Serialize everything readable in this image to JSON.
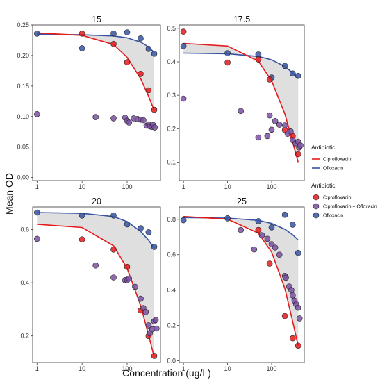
{
  "chart_data": {
    "type": "scatter",
    "xlabel": "Concentration (ug/L)",
    "ylabel": "Mean OD",
    "x_scale": "log",
    "x_ticks": [
      1,
      10,
      100
    ],
    "x_tick_labels": [
      "1",
      "10",
      "100"
    ],
    "xlim": [
      0.8,
      550
    ],
    "colors": {
      "Ciprofloxacin": "#e41a1c",
      "Ofloxacin": "#3853a4",
      "Ciprofloxacin + Ofloxacin": "#7b50a3",
      "band": "#d9d9d9"
    },
    "legends": [
      {
        "title": "Antibiotic",
        "kind": "line",
        "items": [
          {
            "label": "Ciprofloxacin",
            "color": "#e41a1c"
          },
          {
            "label": "Ofloxacin",
            "color": "#3853a4"
          }
        ]
      },
      {
        "title": "Antibiotic",
        "kind": "point",
        "items": [
          {
            "label": "Ciprofloxacin",
            "color": "#e41a1c"
          },
          {
            "label": "Ciprofloxacin + Ofloxacin",
            "color": "#7b50a3"
          },
          {
            "label": "Ofloxacin",
            "color": "#3853a4"
          }
        ]
      }
    ],
    "panels": [
      {
        "title": "15",
        "ylim": [
          -0.005,
          0.25
        ],
        "y_ticks": [
          0.0,
          0.05,
          0.1,
          0.15,
          0.2,
          0.25
        ],
        "y_tick_labels": [
          "0.00",
          "0.05",
          "0.10",
          "0.15",
          "0.20",
          "0.25"
        ],
        "curves": [
          {
            "series": "Ofloxacin",
            "x": [
              1,
              10,
              50,
              100,
              200,
              300,
              400
            ],
            "y": [
              0.235,
              0.234,
              0.232,
              0.229,
              0.222,
              0.214,
              0.205
            ]
          },
          {
            "series": "Ciprofloxacin",
            "x": [
              1,
              10,
              50,
              100,
              200,
              300,
              400
            ],
            "y": [
              0.237,
              0.233,
              0.218,
              0.197,
              0.162,
              0.133,
              0.11
            ]
          }
        ],
        "points": [
          {
            "series": "Ofloxacin",
            "x": [
              1,
              10,
              50,
              100,
              200,
              300,
              400
            ],
            "y": [
              0.236,
              0.212,
              0.236,
              0.238,
              0.228,
              0.211,
              0.203
            ]
          },
          {
            "series": "Ciprofloxacin",
            "x": [
              10,
              50,
              100,
              200,
              300,
              400
            ],
            "y": [
              0.236,
              0.219,
              0.189,
              0.17,
              0.143,
              0.111
            ]
          },
          {
            "series": "Ciprofloxacin + Ofloxacin",
            "x": [
              1,
              20,
              50,
              90,
              100,
              110,
              140,
              170,
              200,
              230,
              270,
              300,
              320,
              350,
              380,
              410
            ],
            "y": [
              0.104,
              0.099,
              0.097,
              0.098,
              0.093,
              0.09,
              0.097,
              0.096,
              0.095,
              0.094,
              0.085,
              0.087,
              0.084,
              0.083,
              0.086,
              0.082
            ]
          }
        ]
      },
      {
        "title": "17.5",
        "ylim": [
          0.045,
          0.51
        ],
        "y_ticks": [
          0.1,
          0.2,
          0.3,
          0.4,
          0.5
        ],
        "y_tick_labels": [
          "0.1",
          "0.2",
          "0.3",
          "0.4",
          "0.5"
        ],
        "curves": [
          {
            "series": "Ofloxacin",
            "x": [
              1,
              10,
              50,
              100,
              200,
              300,
              400
            ],
            "y": [
              0.426,
              0.424,
              0.416,
              0.406,
              0.386,
              0.367,
              0.35
            ]
          },
          {
            "series": "Ciprofloxacin",
            "x": [
              1,
              10,
              50,
              100,
              200,
              300,
              400
            ],
            "y": [
              0.455,
              0.447,
              0.402,
              0.343,
              0.244,
              0.16,
              0.1
            ]
          }
        ],
        "points": [
          {
            "series": "Ofloxacin",
            "x": [
              1,
              10,
              50,
              100,
              200,
              300,
              400
            ],
            "y": [
              0.447,
              0.426,
              0.422,
              0.353,
              0.388,
              0.365,
              0.358
            ]
          },
          {
            "series": "Ciprofloxacin",
            "x": [
              1,
              10,
              50,
              90,
              200,
              300,
              400
            ],
            "y": [
              0.49,
              0.398,
              0.407,
              0.347,
              0.196,
              0.178,
              0.124
            ]
          },
          {
            "series": "Ciprofloxacin + Ofloxacin",
            "x": [
              1,
              20,
              50,
              80,
              90,
              100,
              120,
              150,
              200,
              230,
              270,
              300,
              350,
              400,
              420,
              450
            ],
            "y": [
              0.29,
              0.253,
              0.174,
              0.178,
              0.24,
              0.197,
              0.223,
              0.212,
              0.21,
              0.185,
              0.192,
              0.166,
              0.156,
              0.161,
              0.144,
              0.15
            ]
          }
        ]
      },
      {
        "title": "20",
        "ylim": [
          0.1,
          0.685
        ],
        "y_ticks": [
          0.2,
          0.4,
          0.6
        ],
        "y_tick_labels": [
          "0.2",
          "0.4",
          "0.6"
        ],
        "curves": [
          {
            "series": "Ofloxacin",
            "x": [
              1,
              10,
              50,
              100,
              200,
              300,
              400
            ],
            "y": [
              0.664,
              0.661,
              0.649,
              0.63,
              0.593,
              0.56,
              0.53
            ]
          },
          {
            "series": "Ciprofloxacin",
            "x": [
              1,
              10,
              50,
              100,
              200,
              300,
              400
            ],
            "y": [
              0.62,
              0.608,
              0.539,
              0.454,
              0.314,
              0.203,
              0.12
            ]
          }
        ],
        "points": [
          {
            "series": "Ofloxacin",
            "x": [
              1,
              10,
              50,
              100,
              200,
              300,
              400
            ],
            "y": [
              0.664,
              0.653,
              0.653,
              0.62,
              0.605,
              0.59,
              0.535
            ]
          },
          {
            "series": "Ciprofloxacin",
            "x": [
              10,
              50,
              100,
              200,
              300,
              400
            ],
            "y": [
              0.563,
              0.525,
              0.46,
              0.296,
              0.2,
              0.125
            ]
          },
          {
            "series": "Ciprofloxacin + Ofloxacin",
            "x": [
              1,
              20,
              50,
              90,
              100,
              110,
              150,
              200,
              230,
              260,
              300,
              320,
              360,
              400,
              430,
              450
            ],
            "y": [
              0.565,
              0.465,
              0.42,
              0.41,
              0.41,
              0.416,
              0.385,
              0.34,
              0.305,
              0.29,
              0.24,
              0.21,
              0.225,
              0.255,
              0.26,
              0.228
            ]
          }
        ]
      },
      {
        "title": "25",
        "ylim": [
          -0.01,
          0.87
        ],
        "y_ticks": [
          0.0,
          0.2,
          0.4,
          0.6,
          0.8
        ],
        "y_tick_labels": [
          "0.0",
          "0.2",
          "0.4",
          "0.6",
          "0.8"
        ],
        "curves": [
          {
            "series": "Ofloxacin",
            "x": [
              1,
              10,
              50,
              100,
              200,
              300,
              400
            ],
            "y": [
              0.81,
              0.807,
              0.794,
              0.777,
              0.744,
              0.713,
              0.683
            ]
          },
          {
            "series": "Ciprofloxacin",
            "x": [
              1,
              10,
              50,
              100,
              200,
              300,
              400
            ],
            "y": [
              0.816,
              0.801,
              0.722,
              0.615,
              0.408,
              0.222,
              0.085
            ]
          }
        ],
        "points": [
          {
            "series": "Ofloxacin",
            "x": [
              1,
              10,
              50,
              100,
              200,
              300,
              400
            ],
            "y": [
              0.795,
              0.806,
              0.79,
              0.755,
              0.826,
              0.77,
              0.61
            ]
          },
          {
            "series": "Ciprofloxacin",
            "x": [
              50,
              90,
              200,
              300,
              400
            ],
            "y": [
              0.74,
              0.55,
              0.253,
              0.127,
              0.085
            ]
          },
          {
            "series": "Ciprofloxacin + Ofloxacin",
            "x": [
              20,
              40,
              60,
              80,
              100,
              120,
              150,
              200,
              210,
              250,
              280,
              300,
              330,
              360,
              400,
              430
            ],
            "y": [
              0.74,
              0.63,
              0.71,
              0.69,
              0.66,
              0.64,
              0.6,
              0.48,
              0.47,
              0.42,
              0.4,
              0.37,
              0.34,
              0.32,
              0.3,
              0.24
            ]
          }
        ]
      }
    ]
  }
}
